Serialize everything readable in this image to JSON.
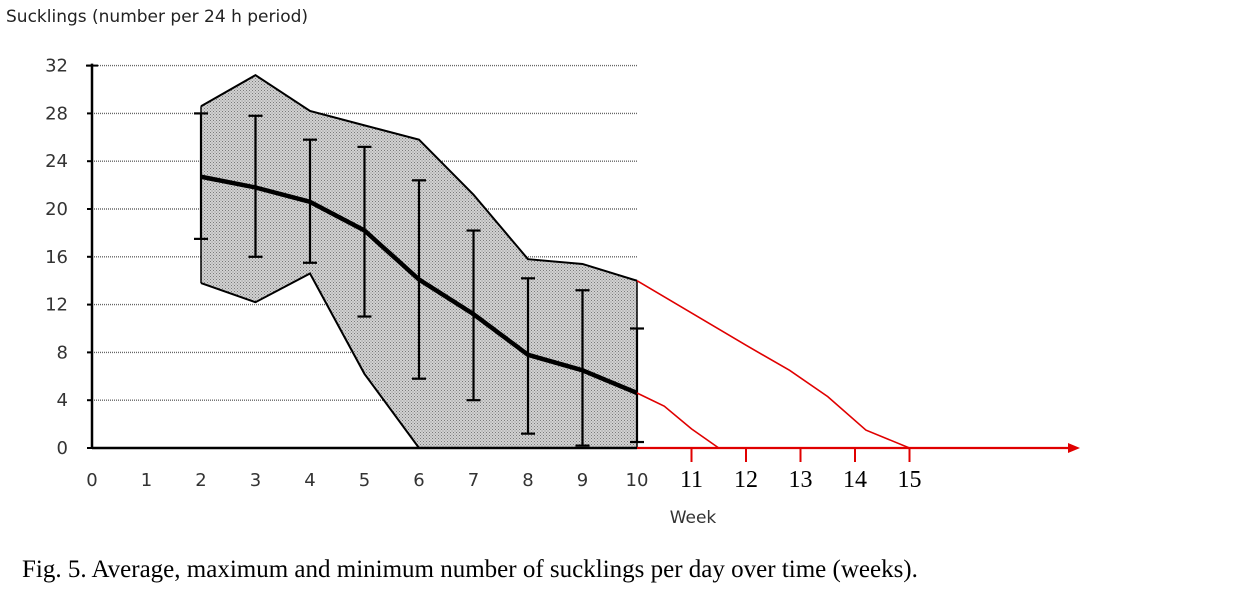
{
  "caption": "Fig. 5. Average, maximum and minimum number of sucklings per day over time (weeks).",
  "chart_data": {
    "type": "line",
    "ylabel": "Sucklings (number per 24 h period)",
    "xlabel": "Week",
    "ylim": [
      0,
      32
    ],
    "xlim": [
      0,
      15
    ],
    "y_ticks": [
      "0",
      "4",
      "8",
      "12",
      "16",
      "20",
      "24",
      "28",
      "32"
    ],
    "x_ticks": [
      "0",
      "1",
      "2",
      "3",
      "4",
      "5",
      "6",
      "7",
      "8",
      "9",
      "10"
    ],
    "x_ticks_extension": [
      "11",
      "12",
      "13",
      "14",
      "15"
    ],
    "grid": true,
    "colors": {
      "mean": "#000000",
      "band_fill": "#cccccc",
      "extrapolation": "#e00000"
    },
    "series": [
      {
        "role": "mean",
        "x": [
          2,
          3,
          4,
          5,
          6,
          7,
          8,
          9,
          10
        ],
        "y": [
          22.7,
          21.8,
          20.6,
          18.2,
          14.1,
          11.2,
          7.8,
          6.5,
          4.6
        ]
      },
      {
        "role": "maximum",
        "x": [
          2,
          3,
          4,
          5,
          6,
          7,
          8,
          9,
          10
        ],
        "y": [
          28.6,
          31.2,
          28.2,
          27.0,
          25.8,
          21.2,
          15.8,
          15.4,
          14.0
        ]
      },
      {
        "role": "minimum",
        "x": [
          2,
          3,
          4,
          5,
          6,
          7,
          8,
          9,
          10
        ],
        "y": [
          13.8,
          12.2,
          14.6,
          6.2,
          0,
          0,
          0,
          0,
          0
        ]
      }
    ],
    "error_bars": [
      {
        "x": 2,
        "low": 17.5,
        "high": 28.0
      },
      {
        "x": 3,
        "low": 16.0,
        "high": 27.8
      },
      {
        "x": 4,
        "low": 15.5,
        "high": 25.8
      },
      {
        "x": 5,
        "low": 11.0,
        "high": 25.2
      },
      {
        "x": 6,
        "low": 5.8,
        "high": 22.4
      },
      {
        "x": 7,
        "low": 4.0,
        "high": 18.2
      },
      {
        "x": 8,
        "low": 1.2,
        "high": 14.2
      },
      {
        "x": 9,
        "low": 0.2,
        "high": 13.2
      },
      {
        "x": 10,
        "low": 0.5,
        "high": 10.0
      }
    ],
    "extrapolations": [
      {
        "role": "maximum-extrapolation",
        "x": [
          10,
          11,
          12,
          12.8,
          13.5,
          14.2,
          15
        ],
        "y": [
          14.0,
          11.3,
          8.6,
          6.5,
          4.3,
          1.5,
          0
        ]
      },
      {
        "role": "mean-extrapolation",
        "x": [
          10,
          10.5,
          11,
          11.5
        ],
        "y": [
          4.6,
          3.5,
          1.6,
          0
        ]
      }
    ]
  }
}
